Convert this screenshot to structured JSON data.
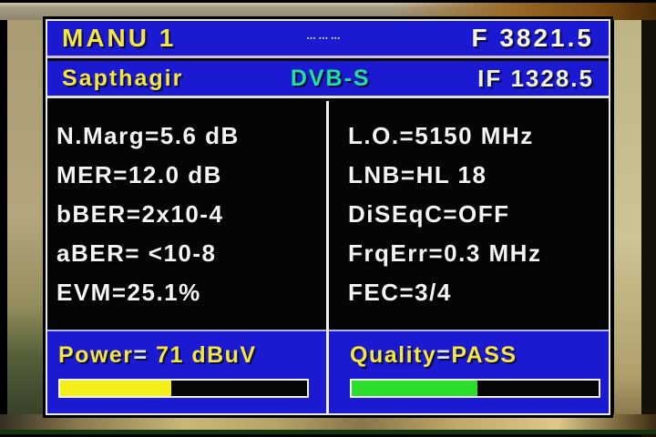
{
  "header": {
    "preset": "MANU 1",
    "center_marks": "▪▪▪ ▪▪▪ ▪▪▪",
    "frequency": "F 3821.5"
  },
  "subheader": {
    "channel_name": "Sapthagir",
    "system": "DVB-S",
    "if_frequency": "IF 1328.5"
  },
  "measurements": {
    "left": [
      "N.Marg=5.6 dB",
      "MER=12.0 dB",
      "bBER=2x10-4",
      "aBER= <10-8",
      "EVM=25.1%"
    ],
    "right": [
      "L.O.=5150 MHz",
      "LNB=HL 18",
      "DiSEqC=OFF",
      "FrqErr=0.3 MHz",
      "FEC=3/4"
    ]
  },
  "power": {
    "label": "Power",
    "equals": "=",
    "value": " 71 dBuV",
    "percent": 45,
    "bar_color": "#f4ee1a"
  },
  "quality": {
    "label": "Quality",
    "equals": "=",
    "value": "PASS",
    "percent": 51,
    "bar_color": "#2ddd2b"
  },
  "colors": {
    "panel_blue": "#1b1ad2",
    "accent_yellow": "#f5e63e",
    "dvbs_green": "#1fe29a",
    "text_white": "#f4f4f4"
  }
}
